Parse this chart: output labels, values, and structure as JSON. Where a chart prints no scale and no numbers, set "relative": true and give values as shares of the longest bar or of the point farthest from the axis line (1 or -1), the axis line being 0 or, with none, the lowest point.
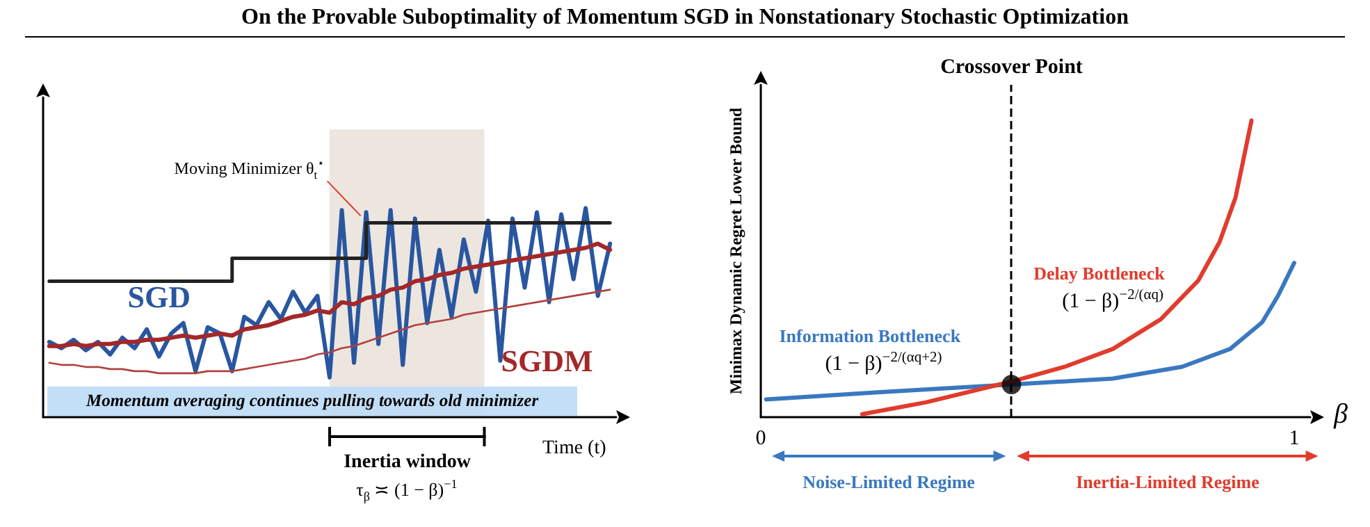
{
  "chart_data": [
    {
      "type": "line",
      "title": "On the Provable Suboptimality of Momentum SGD in Nonstationary Stochastic Optimization",
      "xlabel": "Time (t)",
      "relative": true,
      "tick_labels": false,
      "marker": "none",
      "categories": [
        null,
        null,
        null,
        null,
        null,
        null,
        null,
        null,
        null,
        null,
        null,
        null,
        null,
        null,
        null,
        null,
        null,
        null,
        null,
        null,
        null,
        null,
        null,
        null,
        null,
        null,
        null,
        null,
        null,
        null,
        null,
        null,
        null,
        null,
        null,
        null,
        null,
        null,
        null,
        null,
        null,
        null,
        null,
        null,
        null,
        null,
        null
      ],
      "series": [
        {
          "name": "SGD",
          "color": "#2a56a0",
          "values": [
            0.36,
            0.33,
            0.37,
            0.32,
            0.36,
            0.3,
            0.38,
            0.33,
            0.42,
            0.29,
            0.4,
            0.45,
            0.22,
            0.43,
            0.4,
            0.22,
            0.48,
            0.44,
            0.55,
            0.47,
            0.6,
            0.5,
            0.58,
            0.19,
            0.99,
            0.26,
            0.98,
            0.35,
            0.99,
            0.25,
            0.95,
            0.45,
            0.8,
            0.48,
            0.85,
            0.6,
            0.94,
            0.27,
            0.95,
            0.62,
            0.98,
            0.55,
            0.97,
            0.66,
            1.0,
            0.58,
            0.83
          ]
        },
        {
          "name": "SGDM",
          "color": "#a3282a",
          "values": [
            0.34,
            0.34,
            0.35,
            0.34,
            0.35,
            0.35,
            0.36,
            0.36,
            0.37,
            0.37,
            0.38,
            0.39,
            0.38,
            0.39,
            0.4,
            0.39,
            0.42,
            0.43,
            0.44,
            0.46,
            0.48,
            0.49,
            0.51,
            0.5,
            0.55,
            0.54,
            0.57,
            0.58,
            0.61,
            0.62,
            0.65,
            0.66,
            0.68,
            0.69,
            0.71,
            0.72,
            0.73,
            0.74,
            0.75,
            0.76,
            0.77,
            0.78,
            0.79,
            0.8,
            0.81,
            0.83,
            0.8
          ]
        },
        {
          "color": "#b0413e",
          "values": [
            0.26,
            0.25,
            0.25,
            0.24,
            0.24,
            0.23,
            0.23,
            0.22,
            0.22,
            0.21,
            0.21,
            0.21,
            0.21,
            0.22,
            0.22,
            0.22,
            0.23,
            0.24,
            0.25,
            0.26,
            0.27,
            0.28,
            0.3,
            0.31,
            0.33,
            0.34,
            0.36,
            0.38,
            0.4,
            0.42,
            0.44,
            0.45,
            0.46,
            0.47,
            0.49,
            0.5,
            0.51,
            0.52,
            0.53,
            0.54,
            0.55,
            0.56,
            0.57,
            0.58,
            0.59,
            0.6,
            0.61
          ]
        },
        {
          "type": "step",
          "color": "#222222",
          "values": [
            0.65,
            0.65,
            0.65,
            0.65,
            0.65,
            0.65,
            0.65,
            0.65,
            0.65,
            0.65,
            0.65,
            0.65,
            0.65,
            0.65,
            0.65,
            0.76,
            0.76,
            0.76,
            0.76,
            0.76,
            0.76,
            0.76,
            0.76,
            0.76,
            0.76,
            0.76,
            0.93,
            0.93,
            0.93,
            0.93,
            0.93,
            0.93,
            0.93,
            0.93,
            0.93,
            0.93,
            0.93,
            0.93,
            0.93,
            0.93,
            0.93,
            0.93,
            0.93,
            0.93,
            0.93,
            0.93,
            0.93
          ]
        }
      ],
      "annotations": [
        "Moving Minimizer θ$_{t}$$^{⋆}$",
        "Momentum averaging continues pulling towards old minimizer",
        "Inertia window",
        "τ$_{β}$ ≍ (1 − β)$^{−1}$"
      ]
    },
    {
      "type": "line",
      "xlabel": "β",
      "ylabel": "Minimax Dynamic Regret Lower Bound",
      "relative": true,
      "xlim": [
        0,
        1.03
      ],
      "xticks": [
        0,
        1
      ],
      "tick_labels": "x",
      "marker": "none",
      "series": [
        {
          "name": "Information Bottleneck",
          "color": "#3a78c0",
          "x": [
            0.01,
            0.23,
            0.47,
            0.66,
            0.79,
            0.88,
            0.94,
            0.97,
            1.0
          ],
          "values": [
            0.06,
            0.085,
            0.11,
            0.13,
            0.17,
            0.23,
            0.32,
            0.41,
            0.52
          ]
        },
        {
          "name": "Delay Bottleneck",
          "color": "#e03c2d",
          "x": [
            0.19,
            0.31,
            0.47,
            0.57,
            0.66,
            0.75,
            0.82,
            0.86,
            0.89,
            0.92
          ],
          "values": [
            0.01,
            0.05,
            0.12,
            0.17,
            0.23,
            0.33,
            0.46,
            0.59,
            0.74,
            1.0
          ]
        },
        {
          "type": "scatter",
          "marker": "circle",
          "color": "#000000",
          "x": [
            0.47
          ],
          "values": [
            0.11
          ]
        }
      ],
      "ref_lines": [
        {
          "axis": "x",
          "value": 0.47,
          "label": "Crossover Point",
          "color": "#000000",
          "line_style": "dashed"
        }
      ],
      "annotations": [
        "(1 − β)$^{−2/(αq+2)}$",
        "(1 − β)$^{−2/(αq)}$",
        "Noise-Limited Regime",
        "Inertia-Limited Regime"
      ]
    }
  ]
}
